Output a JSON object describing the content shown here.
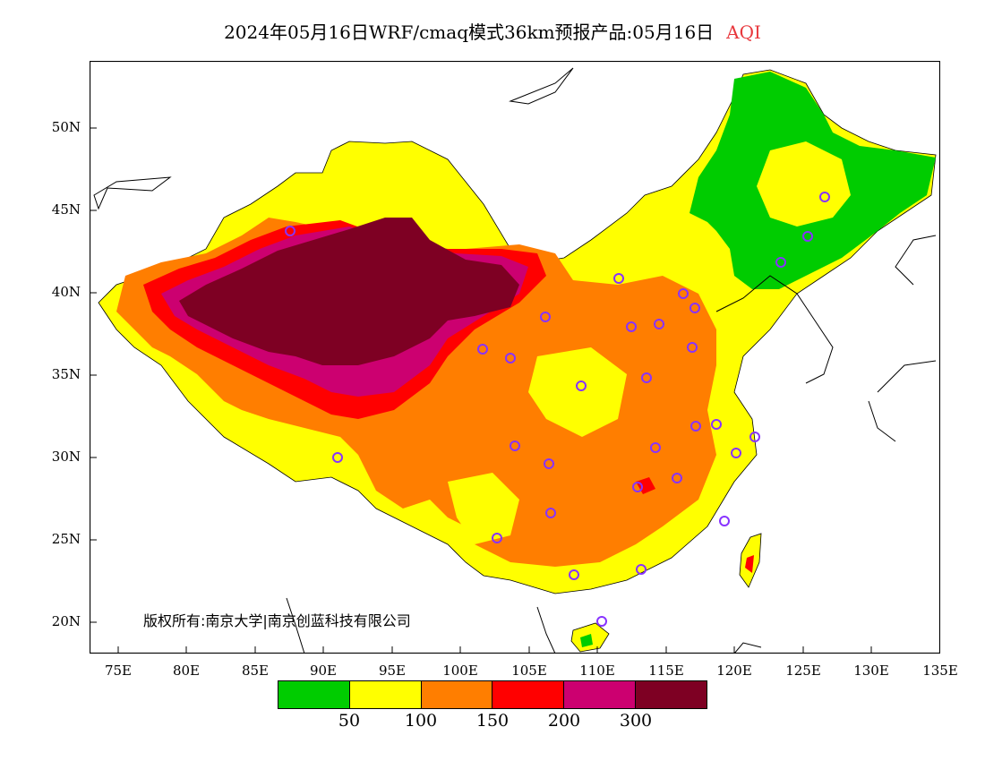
{
  "title": "2024年05月16日WRF/cmaq模式36km预报产品:05月16日",
  "variable": "AQI",
  "map": {
    "lat_ticks": [
      {
        "value": 50,
        "label": "50N"
      },
      {
        "value": 45,
        "label": "45N"
      },
      {
        "value": 40,
        "label": "40N"
      },
      {
        "value": 35,
        "label": "35N"
      },
      {
        "value": 30,
        "label": "30N"
      },
      {
        "value": 25,
        "label": "25N"
      },
      {
        "value": 20,
        "label": "20N"
      }
    ],
    "lon_ticks": [
      {
        "value": 75,
        "label": "75E"
      },
      {
        "value": 80,
        "label": "80E"
      },
      {
        "value": 85,
        "label": "85E"
      },
      {
        "value": 90,
        "label": "90E"
      },
      {
        "value": 95,
        "label": "95E"
      },
      {
        "value": 100,
        "label": "100E"
      },
      {
        "value": 105,
        "label": "105E"
      },
      {
        "value": 110,
        "label": "110E"
      },
      {
        "value": 115,
        "label": "115E"
      },
      {
        "value": 120,
        "label": "120E"
      },
      {
        "value": 125,
        "label": "125E"
      },
      {
        "value": 130,
        "label": "130E"
      },
      {
        "value": 135,
        "label": "135E"
      }
    ],
    "lon_range": [
      73,
      135
    ],
    "lat_range": [
      18,
      54
    ],
    "copyright": "版权所有:南京大学|南京创蓝科技有限公司"
  },
  "legend": {
    "colors": [
      "#00cc00",
      "#ffff00",
      "#ff7e00",
      "#ff0000",
      "#cc0070",
      "#7e0023"
    ],
    "labels": [
      "50",
      "100",
      "150",
      "200",
      "300"
    ]
  }
}
